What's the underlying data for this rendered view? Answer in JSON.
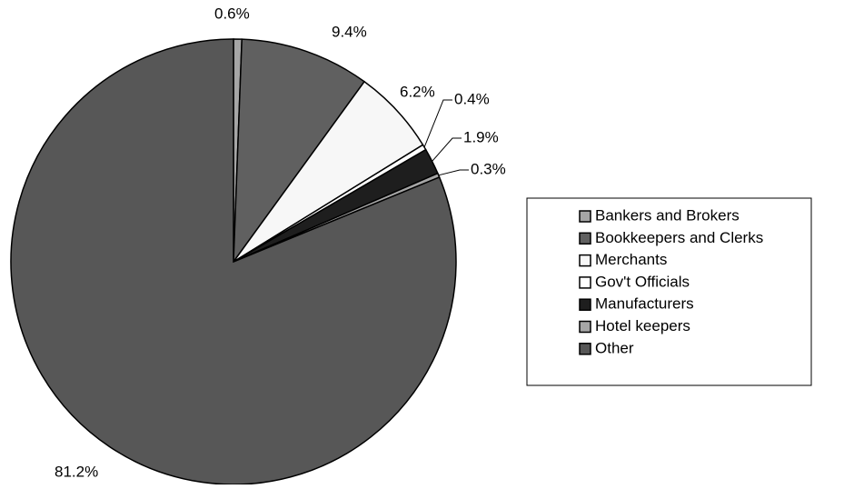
{
  "chart_data": {
    "type": "pie",
    "categories": [
      "Bankers and Brokers",
      "Bookkeepers and Clerks",
      "Merchants",
      "Gov't Officials",
      "Manufacturers",
      "Hotel keepers",
      "Other"
    ],
    "values": [
      0.6,
      9.4,
      6.2,
      0.4,
      1.9,
      0.3,
      81.2
    ],
    "value_labels": [
      "0.6%",
      "9.4%",
      "6.2%",
      "0.4%",
      "1.9%",
      "0.3%",
      "81.2%"
    ],
    "colors": [
      "#a6a6a6",
      "#606060",
      "#f7f7f7",
      "#ffffff",
      "#1e1e1e",
      "#a6a6a6",
      "#575757"
    ],
    "legend": "right"
  }
}
